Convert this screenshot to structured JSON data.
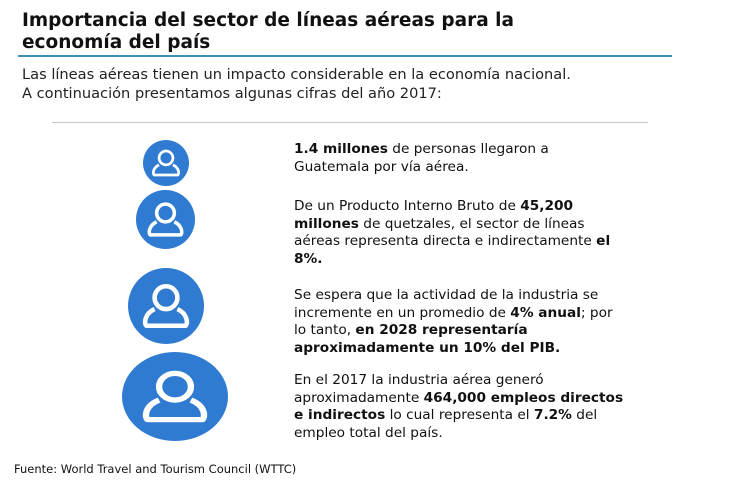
{
  "title": {
    "line1": "Importancia del sector de líneas aéreas para la",
    "line2": "economía del país"
  },
  "intro": {
    "line1": "Las líneas aéreas tienen un impacto considerable en la economía nacional.",
    "line2": "A continuación presentamos algunas cifras del año 2017:"
  },
  "icon": "person-icon",
  "accent_color": "#2f7bd1",
  "stats": [
    {
      "p1": "1.4 millones",
      "p2": " de personas llegaron a Guatemala por vía aérea."
    },
    {
      "p1": "De un Producto Interno Bruto de ",
      "p2": "45,200 millones",
      "p3": " de quetzales, el sector de líneas aéreas representa directa e indirectamente ",
      "p4": "el 8%."
    },
    {
      "p1": "Se espera que la actividad de la industria se incremente en un promedio de ",
      "p2": "4% anual",
      "p3": "; por lo tanto, ",
      "p4": "en 2028 representaría aproximadamente un 10% del PIB."
    },
    {
      "p1": "En el 2017 la industria aérea generó aproximadamente ",
      "p2": "464,000 empleos directos e indirectos",
      "p3": " lo cual representa el ",
      "p4": "7.2%",
      "p5": " del empleo total del país."
    }
  ],
  "source": "Fuente: World Travel and Tourism Council (WTTC)"
}
